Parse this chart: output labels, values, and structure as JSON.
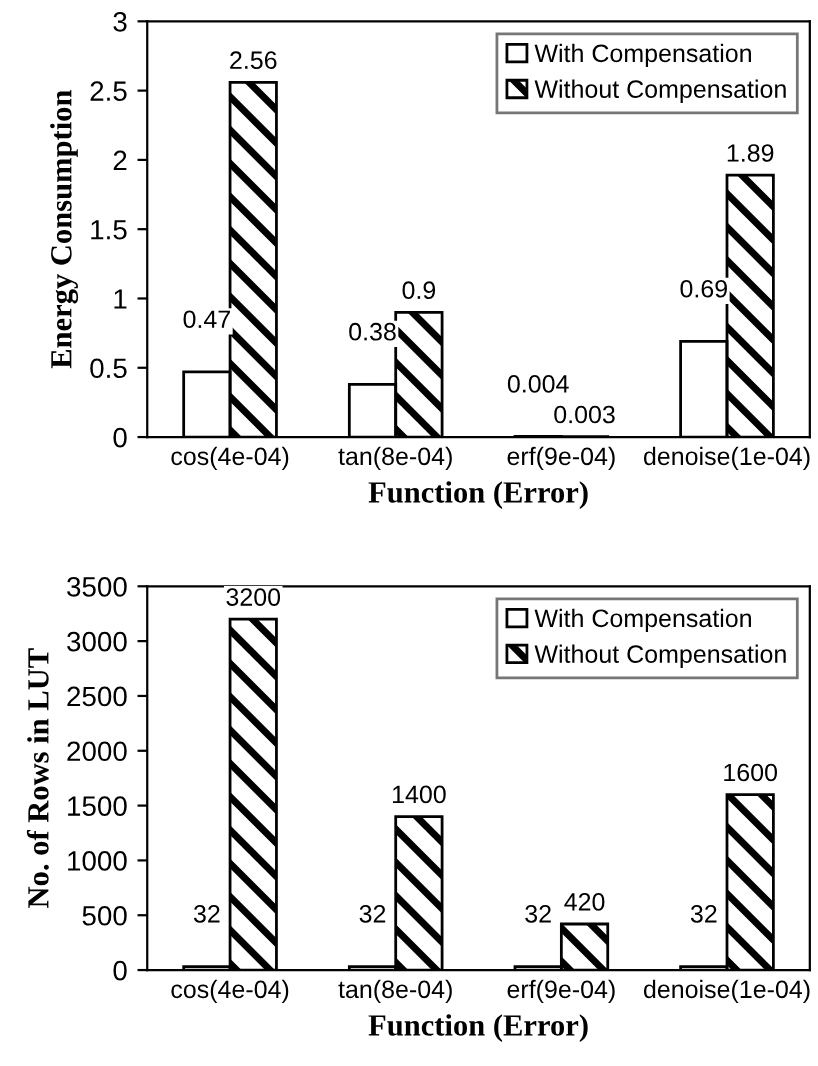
{
  "chart_data": [
    {
      "type": "bar",
      "xlabel": "Function (Error)",
      "ylabel": "Energy Consumption",
      "categories": [
        "cos(4e-04)",
        "tan(8e-04)",
        "erf(9e-04)",
        "denoise(1e-04)"
      ],
      "series": [
        {
          "name": "With Compensation",
          "color": "#ffffff",
          "values": [
            0.47,
            0.38,
            0.004,
            0.69
          ],
          "value_labels": [
            "0.47",
            "0.38",
            "0.004",
            "0.69"
          ]
        },
        {
          "name": "Without Compensation",
          "color": "#000000",
          "values": [
            2.56,
            0.9,
            0.003,
            1.89
          ],
          "value_labels": [
            "2.56",
            "0.9",
            "0.003",
            "1.89"
          ]
        }
      ],
      "ylim": [
        0,
        3
      ],
      "yticks": [
        0,
        0.5,
        1,
        1.5,
        2,
        2.5,
        3
      ],
      "grid": false,
      "legend": "top right"
    },
    {
      "type": "bar",
      "xlabel": "Function (Error)",
      "ylabel": "No. of Rows in LUT",
      "categories": [
        "cos(4e-04)",
        "tan(8e-04)",
        "erf(9e-04)",
        "denoise(1e-04)"
      ],
      "series": [
        {
          "name": "With Compensation",
          "color": "#ffffff",
          "values": [
            32,
            32,
            32,
            32
          ]
        },
        {
          "name": "Without Compensation",
          "color": "#000000",
          "values": [
            3200,
            1400,
            420,
            1600
          ]
        }
      ],
      "ylim": [
        0,
        3500
      ],
      "yticks": [
        0,
        500,
        1000,
        1500,
        2000,
        2500,
        3000,
        3500
      ],
      "grid": false,
      "legend": "top right",
      "data_labels": true
    }
  ]
}
